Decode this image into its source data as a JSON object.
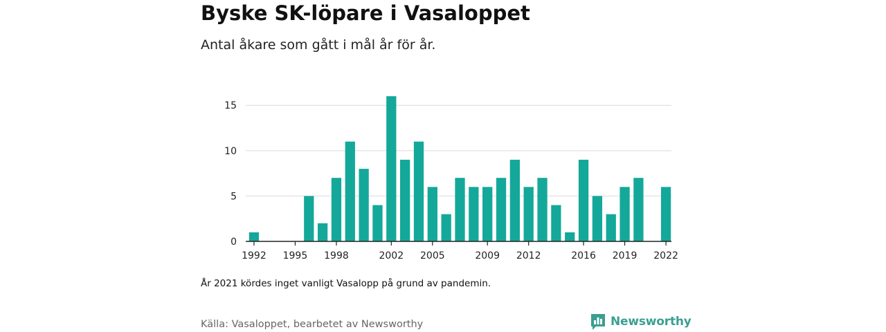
{
  "header": {
    "title": "Byske SK-löpare i Vasaloppet",
    "subtitle": "Antal åkare som gått i mål år för år."
  },
  "footer": {
    "note": "År 2021 kördes inget vanligt Vasalopp på grund av pandemin.",
    "source": "Källa: Vasaloppet, bearbetet av Newsworthy",
    "brand": "Newsworthy",
    "brand_icon": "newsworthy-logo-icon"
  },
  "colors": {
    "bar": "#14a89a",
    "grid": "#d9d9d9",
    "axis": "#222222",
    "brand": "#3a9f92"
  },
  "chart_data": {
    "type": "bar",
    "title": "Byske SK-löpare i Vasaloppet",
    "subtitle": "Antal åkare som gått i mål år för år.",
    "xlabel": "",
    "ylabel": "",
    "ylim": [
      0,
      17
    ],
    "yticks": [
      0,
      5,
      10,
      15
    ],
    "xticks": [
      1992,
      1995,
      1998,
      2002,
      2005,
      2009,
      2012,
      2016,
      2019,
      2022
    ],
    "grid": true,
    "categories": [
      1992,
      1993,
      1994,
      1995,
      1996,
      1997,
      1998,
      1999,
      2000,
      2001,
      2002,
      2003,
      2004,
      2005,
      2006,
      2007,
      2008,
      2009,
      2010,
      2011,
      2012,
      2013,
      2014,
      2015,
      2016,
      2017,
      2018,
      2019,
      2020,
      2021,
      2022
    ],
    "values": [
      1,
      0,
      0,
      0,
      5,
      2,
      7,
      11,
      8,
      4,
      16,
      9,
      11,
      6,
      3,
      7,
      6,
      6,
      7,
      9,
      6,
      7,
      4,
      1,
      9,
      5,
      3,
      6,
      7,
      0,
      6
    ]
  }
}
